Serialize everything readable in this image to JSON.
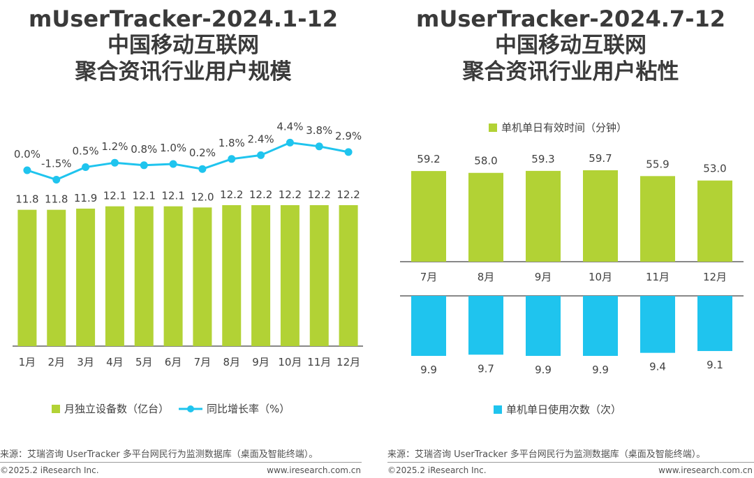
{
  "left": {
    "title": [
      "mUserTracker-2024.1-12",
      "中国移动互联网",
      "聚合资讯行业用户规模"
    ],
    "legend": {
      "bar_label": "月独立设备数（亿台）",
      "line_label": "同比增长率（%）"
    },
    "source": "来源：艾瑞咨询 UserTracker 多平台网民行为监测数据库（桌面及智能终端）。",
    "copyright": "©2025.2 iResearch Inc.",
    "site": "www.iresearch.com.cn"
  },
  "right": {
    "title": [
      "mUserTracker-2024.7-12",
      "中国移动互联网",
      "聚合资讯行业用户粘性"
    ],
    "legend": {
      "top_label": "单机单日有效时间（分钟）",
      "bottom_label": "单机单日使用次数（次）"
    },
    "source": "来源：艾瑞咨询 UserTracker 多平台网民行为监测数据库（桌面及智能终端）。",
    "copyright": "©2025.2 iResearch Inc.",
    "site": "www.iresearch.com.cn"
  },
  "colors": {
    "bar_green": "#b2d235",
    "line_blue": "#1fc4ee",
    "bar_blue": "#1fc4ee",
    "axis": "#404040"
  },
  "chart_data": [
    {
      "type": "bar",
      "categories": [
        "1月",
        "2月",
        "3月",
        "4月",
        "5月",
        "6月",
        "7月",
        "8月",
        "9月",
        "10月",
        "11月",
        "12月"
      ],
      "series": [
        {
          "name": "月独立设备数（亿台）",
          "type": "bar",
          "values": [
            11.8,
            11.8,
            11.9,
            12.1,
            12.1,
            12.1,
            12.0,
            12.2,
            12.2,
            12.2,
            12.2,
            12.2
          ],
          "labels": [
            "11.8",
            "11.8",
            "11.9",
            "12.1",
            "12.1",
            "12.1",
            "12.0",
            "12.2",
            "12.2",
            "12.2",
            "12.2",
            "12.2"
          ]
        },
        {
          "name": "同比增长率（%）",
          "type": "line",
          "values": [
            0.0,
            -1.5,
            0.5,
            1.2,
            0.8,
            1.0,
            0.2,
            1.8,
            2.4,
            4.4,
            3.8,
            2.9
          ],
          "labels": [
            "0.0%",
            "-1.5%",
            "0.5%",
            "1.2%",
            "0.8%",
            "1.0%",
            "0.2%",
            "1.8%",
            "2.4%",
            "4.4%",
            "3.8%",
            "2.9%"
          ]
        }
      ]
    },
    {
      "type": "bar",
      "categories": [
        "7月",
        "8月",
        "9月",
        "10月",
        "11月",
        "12月"
      ],
      "series": [
        {
          "name": "单机单日有效时间（分钟）",
          "values": [
            59.2,
            58.0,
            59.3,
            59.7,
            55.9,
            53.0
          ],
          "labels": [
            "59.2",
            "58.0",
            "59.3",
            "59.7",
            "55.9",
            "53.0"
          ]
        },
        {
          "name": "单机单日使用次数（次）",
          "values": [
            9.9,
            9.7,
            9.9,
            9.9,
            9.4,
            9.1
          ],
          "labels": [
            "9.9",
            "9.7",
            "9.9",
            "9.9",
            "9.4",
            "9.1"
          ]
        }
      ]
    }
  ]
}
